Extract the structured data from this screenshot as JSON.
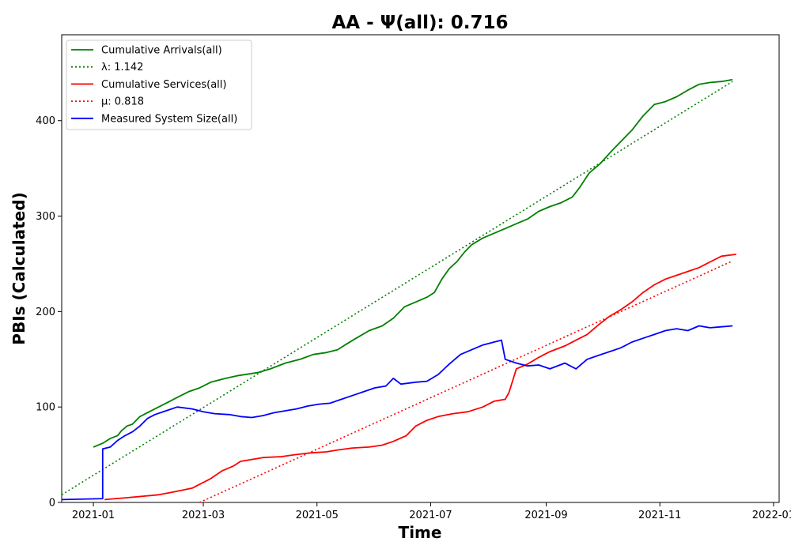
{
  "chart_data": {
    "type": "line",
    "title": "AA -  Ψ(all): 0.716",
    "xlabel": "Time",
    "ylabel": "PBIs (Calculated)",
    "xlim": [
      0,
      385
    ],
    "ylim": [
      0,
      490
    ],
    "x_ticks": [
      {
        "label": "2021-01",
        "x": 17
      },
      {
        "label": "2021-03",
        "x": 76
      },
      {
        "label": "2021-05",
        "x": 137
      },
      {
        "label": "2021-07",
        "x": 198
      },
      {
        "label": "2021-09",
        "x": 260
      },
      {
        "label": "2021-11",
        "x": 321
      },
      {
        "label": "2022-01",
        "x": 382
      }
    ],
    "y_ticks": [
      0,
      100,
      200,
      300,
      400
    ],
    "legend": {
      "position": "top-left",
      "entries": [
        {
          "label": "Cumulative Arrivals(all)",
          "series": "arrivals"
        },
        {
          "label": "λ: 1.142",
          "series": "lambda"
        },
        {
          "label": "Cumulative Services(all)",
          "series": "services"
        },
        {
          "label": "μ: 0.818",
          "series": "mu"
        },
        {
          "label": "Measured System Size(all)",
          "series": "size"
        }
      ]
    },
    "series": [
      {
        "id": "arrivals",
        "name": "Cumulative Arrivals(all)",
        "color": "#008000",
        "style": "solid",
        "points": [
          [
            17,
            58
          ],
          [
            22,
            62
          ],
          [
            26,
            67
          ],
          [
            30,
            70
          ],
          [
            32,
            75
          ],
          [
            35,
            80
          ],
          [
            38,
            82
          ],
          [
            42,
            90
          ],
          [
            47,
            95
          ],
          [
            52,
            100
          ],
          [
            56,
            104
          ],
          [
            62,
            110
          ],
          [
            68,
            116
          ],
          [
            74,
            120
          ],
          [
            80,
            126
          ],
          [
            88,
            130
          ],
          [
            95,
            133
          ],
          [
            105,
            136
          ],
          [
            112,
            140
          ],
          [
            120,
            146
          ],
          [
            128,
            150
          ],
          [
            135,
            155
          ],
          [
            142,
            157
          ],
          [
            148,
            160
          ],
          [
            152,
            165
          ],
          [
            158,
            172
          ],
          [
            165,
            180
          ],
          [
            172,
            185
          ],
          [
            178,
            193
          ],
          [
            184,
            205
          ],
          [
            190,
            210
          ],
          [
            196,
            215
          ],
          [
            200,
            220
          ],
          [
            204,
            234
          ],
          [
            208,
            245
          ],
          [
            212,
            252
          ],
          [
            216,
            262
          ],
          [
            220,
            270
          ],
          [
            226,
            277
          ],
          [
            232,
            282
          ],
          [
            238,
            287
          ],
          [
            244,
            292
          ],
          [
            250,
            297
          ],
          [
            256,
            305
          ],
          [
            262,
            310
          ],
          [
            268,
            314
          ],
          [
            274,
            320
          ],
          [
            278,
            330
          ],
          [
            283,
            345
          ],
          [
            289,
            355
          ],
          [
            295,
            368
          ],
          [
            300,
            378
          ],
          [
            306,
            390
          ],
          [
            312,
            405
          ],
          [
            318,
            417
          ],
          [
            324,
            420
          ],
          [
            330,
            425
          ],
          [
            336,
            432
          ],
          [
            342,
            438
          ],
          [
            348,
            440
          ],
          [
            354,
            441
          ],
          [
            360,
            443
          ]
        ]
      },
      {
        "id": "lambda",
        "name": "λ: 1.142",
        "color": "#008000",
        "style": "dotted",
        "points": [
          [
            0,
            8
          ],
          [
            360,
            441
          ]
        ]
      },
      {
        "id": "services",
        "name": "Cumulative Services(all)",
        "color": "#ff0000",
        "style": "solid",
        "points": [
          [
            23,
            3
          ],
          [
            35,
            5
          ],
          [
            52,
            8
          ],
          [
            60,
            11
          ],
          [
            70,
            15
          ],
          [
            80,
            25
          ],
          [
            86,
            33
          ],
          [
            92,
            38
          ],
          [
            96,
            43
          ],
          [
            102,
            45
          ],
          [
            108,
            47
          ],
          [
            118,
            48
          ],
          [
            125,
            50
          ],
          [
            134,
            52
          ],
          [
            142,
            53
          ],
          [
            148,
            55
          ],
          [
            156,
            57
          ],
          [
            165,
            58
          ],
          [
            172,
            60
          ],
          [
            178,
            64
          ],
          [
            185,
            70
          ],
          [
            190,
            80
          ],
          [
            196,
            86
          ],
          [
            202,
            90
          ],
          [
            210,
            93
          ],
          [
            218,
            95
          ],
          [
            226,
            100
          ],
          [
            232,
            106
          ],
          [
            238,
            108
          ],
          [
            240,
            115
          ],
          [
            244,
            140
          ],
          [
            250,
            145
          ],
          [
            256,
            152
          ],
          [
            262,
            158
          ],
          [
            270,
            164
          ],
          [
            276,
            170
          ],
          [
            282,
            176
          ],
          [
            288,
            186
          ],
          [
            294,
            195
          ],
          [
            300,
            202
          ],
          [
            306,
            210
          ],
          [
            312,
            220
          ],
          [
            318,
            228
          ],
          [
            324,
            234
          ],
          [
            330,
            238
          ],
          [
            336,
            242
          ],
          [
            342,
            246
          ],
          [
            348,
            252
          ],
          [
            354,
            258
          ],
          [
            362,
            260
          ]
        ]
      },
      {
        "id": "mu",
        "name": "μ: 0.818",
        "color": "#ff0000",
        "style": "dotted",
        "points": [
          [
            74,
            0
          ],
          [
            360,
            253
          ]
        ]
      },
      {
        "id": "size",
        "name": "Measured System Size(all)",
        "color": "#0000ff",
        "style": "solid",
        "points": [
          [
            0,
            3
          ],
          [
            22,
            4
          ],
          [
            22,
            56
          ],
          [
            26,
            58
          ],
          [
            30,
            65
          ],
          [
            34,
            70
          ],
          [
            38,
            74
          ],
          [
            42,
            80
          ],
          [
            46,
            88
          ],
          [
            50,
            92
          ],
          [
            56,
            96
          ],
          [
            62,
            100
          ],
          [
            70,
            98
          ],
          [
            76,
            95
          ],
          [
            82,
            93
          ],
          [
            90,
            92
          ],
          [
            96,
            90
          ],
          [
            102,
            89
          ],
          [
            108,
            91
          ],
          [
            114,
            94
          ],
          [
            120,
            96
          ],
          [
            126,
            98
          ],
          [
            132,
            101
          ],
          [
            138,
            103
          ],
          [
            144,
            104
          ],
          [
            150,
            108
          ],
          [
            156,
            112
          ],
          [
            162,
            116
          ],
          [
            168,
            120
          ],
          [
            174,
            122
          ],
          [
            178,
            130
          ],
          [
            182,
            124
          ],
          [
            190,
            126
          ],
          [
            196,
            127
          ],
          [
            202,
            134
          ],
          [
            208,
            145
          ],
          [
            214,
            155
          ],
          [
            220,
            160
          ],
          [
            226,
            165
          ],
          [
            232,
            168
          ],
          [
            236,
            170
          ],
          [
            238,
            150
          ],
          [
            244,
            146
          ],
          [
            250,
            143
          ],
          [
            256,
            144
          ],
          [
            262,
            140
          ],
          [
            270,
            146
          ],
          [
            276,
            140
          ],
          [
            282,
            150
          ],
          [
            288,
            154
          ],
          [
            294,
            158
          ],
          [
            300,
            162
          ],
          [
            306,
            168
          ],
          [
            312,
            172
          ],
          [
            318,
            176
          ],
          [
            324,
            180
          ],
          [
            330,
            182
          ],
          [
            336,
            180
          ],
          [
            342,
            185
          ],
          [
            348,
            183
          ],
          [
            354,
            184
          ],
          [
            360,
            185
          ]
        ]
      }
    ]
  }
}
